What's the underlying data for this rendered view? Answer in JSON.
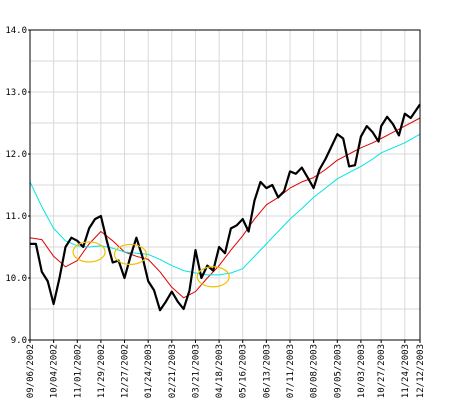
{
  "chart_data": {
    "type": "line",
    "title": "",
    "xlabel": "",
    "ylabel": "",
    "ylim": [
      9.0,
      14.0
    ],
    "yticks": [
      "9.0",
      "10.0",
      "11.0",
      "12.0",
      "13.0",
      "14.0"
    ],
    "xlim": [
      "2002-09-06",
      "2003-12-12"
    ],
    "xticks": [
      "09/06/2002",
      "10/04/2002",
      "11/01/2002",
      "11/29/2002",
      "12/27/2002",
      "01/24/2003",
      "02/21/2003",
      "03/21/2003",
      "04/18/2003",
      "05/16/2003",
      "06/13/2003",
      "07/11/2003",
      "08/08/2003",
      "09/05/2003",
      "10/03/2003",
      "10/27/2003",
      "11/24/2003",
      "12/12/2003"
    ],
    "grid": true,
    "legend": "none",
    "series": [
      {
        "color": "#000000",
        "style": "price",
        "points": [
          [
            "2002-09-06",
            10.55
          ],
          [
            "2002-09-13",
            10.55
          ],
          [
            "2002-09-20",
            10.1
          ],
          [
            "2002-09-27",
            9.95
          ],
          [
            "2002-10-04",
            9.58
          ],
          [
            "2002-10-11",
            10.0
          ],
          [
            "2002-10-18",
            10.5
          ],
          [
            "2002-10-25",
            10.65
          ],
          [
            "2002-11-01",
            10.6
          ],
          [
            "2002-11-08",
            10.5
          ],
          [
            "2002-11-15",
            10.8
          ],
          [
            "2002-11-22",
            10.95
          ],
          [
            "2002-11-29",
            11.0
          ],
          [
            "2002-12-06",
            10.6
          ],
          [
            "2002-12-13",
            10.25
          ],
          [
            "2002-12-20",
            10.28
          ],
          [
            "2002-12-27",
            10.0
          ],
          [
            "2003-01-03",
            10.35
          ],
          [
            "2003-01-10",
            10.65
          ],
          [
            "2003-01-17",
            10.35
          ],
          [
            "2003-01-24",
            9.95
          ],
          [
            "2003-01-31",
            9.8
          ],
          [
            "2003-02-07",
            9.48
          ],
          [
            "2003-02-14",
            9.62
          ],
          [
            "2003-02-21",
            9.78
          ],
          [
            "2003-02-28",
            9.62
          ],
          [
            "2003-03-07",
            9.5
          ],
          [
            "2003-03-14",
            9.8
          ],
          [
            "2003-03-21",
            10.45
          ],
          [
            "2003-03-28",
            10.0
          ],
          [
            "2003-04-04",
            10.2
          ],
          [
            "2003-04-11",
            10.12
          ],
          [
            "2003-04-18",
            10.5
          ],
          [
            "2003-04-25",
            10.4
          ],
          [
            "2003-05-02",
            10.8
          ],
          [
            "2003-05-09",
            10.85
          ],
          [
            "2003-05-16",
            10.95
          ],
          [
            "2003-05-23",
            10.75
          ],
          [
            "2003-05-30",
            11.25
          ],
          [
            "2003-06-06",
            11.55
          ],
          [
            "2003-06-13",
            11.45
          ],
          [
            "2003-06-20",
            11.5
          ],
          [
            "2003-06-27",
            11.3
          ],
          [
            "2003-07-04",
            11.4
          ],
          [
            "2003-07-11",
            11.72
          ],
          [
            "2003-07-18",
            11.68
          ],
          [
            "2003-07-25",
            11.78
          ],
          [
            "2003-08-01",
            11.62
          ],
          [
            "2003-08-08",
            11.45
          ],
          [
            "2003-08-15",
            11.75
          ],
          [
            "2003-08-22",
            11.92
          ],
          [
            "2003-08-29",
            12.12
          ],
          [
            "2003-09-05",
            12.32
          ],
          [
            "2003-09-12",
            12.25
          ],
          [
            "2003-09-19",
            11.8
          ],
          [
            "2003-09-26",
            11.82
          ],
          [
            "2003-10-03",
            12.28
          ],
          [
            "2003-10-10",
            12.45
          ],
          [
            "2003-10-17",
            12.35
          ],
          [
            "2003-10-24",
            12.2
          ],
          [
            "2003-10-27",
            12.45
          ],
          [
            "2003-11-03",
            12.6
          ],
          [
            "2003-11-10",
            12.48
          ],
          [
            "2003-11-17",
            12.3
          ],
          [
            "2003-11-24",
            12.65
          ],
          [
            "2003-12-01",
            12.58
          ],
          [
            "2003-12-08",
            12.72
          ],
          [
            "2003-12-12",
            12.8
          ]
        ]
      },
      {
        "color": "#e00000",
        "style": "short-moving-average",
        "points": [
          [
            "2002-09-06",
            10.65
          ],
          [
            "2002-09-20",
            10.62
          ],
          [
            "2002-10-04",
            10.35
          ],
          [
            "2002-10-18",
            10.18
          ],
          [
            "2002-11-01",
            10.28
          ],
          [
            "2002-11-15",
            10.55
          ],
          [
            "2002-11-29",
            10.75
          ],
          [
            "2002-12-13",
            10.6
          ],
          [
            "2002-12-27",
            10.42
          ],
          [
            "2003-01-10",
            10.35
          ],
          [
            "2003-01-24",
            10.3
          ],
          [
            "2003-02-07",
            10.1
          ],
          [
            "2003-02-21",
            9.85
          ],
          [
            "2003-03-07",
            9.68
          ],
          [
            "2003-03-21",
            9.78
          ],
          [
            "2003-04-04",
            10.0
          ],
          [
            "2003-04-18",
            10.2
          ],
          [
            "2003-05-02",
            10.45
          ],
          [
            "2003-05-16",
            10.68
          ],
          [
            "2003-05-30",
            10.95
          ],
          [
            "2003-06-13",
            11.18
          ],
          [
            "2003-06-27",
            11.3
          ],
          [
            "2003-07-11",
            11.45
          ],
          [
            "2003-07-25",
            11.55
          ],
          [
            "2003-08-08",
            11.62
          ],
          [
            "2003-08-22",
            11.75
          ],
          [
            "2003-09-05",
            11.9
          ],
          [
            "2003-09-19",
            12.0
          ],
          [
            "2003-10-03",
            12.1
          ],
          [
            "2003-10-17",
            12.18
          ],
          [
            "2003-10-27",
            12.25
          ],
          [
            "2003-11-10",
            12.35
          ],
          [
            "2003-11-24",
            12.45
          ],
          [
            "2003-12-12",
            12.58
          ]
        ]
      },
      {
        "color": "#00e5e5",
        "style": "long-moving-average",
        "points": [
          [
            "2002-09-06",
            11.55
          ],
          [
            "2002-09-20",
            11.15
          ],
          [
            "2002-10-04",
            10.8
          ],
          [
            "2002-10-18",
            10.6
          ],
          [
            "2002-11-01",
            10.52
          ],
          [
            "2002-11-15",
            10.5
          ],
          [
            "2002-11-29",
            10.52
          ],
          [
            "2002-12-13",
            10.48
          ],
          [
            "2002-12-27",
            10.42
          ],
          [
            "2003-01-10",
            10.4
          ],
          [
            "2003-01-24",
            10.38
          ],
          [
            "2003-02-07",
            10.3
          ],
          [
            "2003-02-21",
            10.2
          ],
          [
            "2003-03-07",
            10.12
          ],
          [
            "2003-03-21",
            10.08
          ],
          [
            "2003-04-04",
            10.05
          ],
          [
            "2003-04-18",
            10.05
          ],
          [
            "2003-05-02",
            10.08
          ],
          [
            "2003-05-16",
            10.15
          ],
          [
            "2003-05-30",
            10.35
          ],
          [
            "2003-06-13",
            10.55
          ],
          [
            "2003-06-27",
            10.75
          ],
          [
            "2003-07-11",
            10.95
          ],
          [
            "2003-07-25",
            11.12
          ],
          [
            "2003-08-08",
            11.3
          ],
          [
            "2003-08-22",
            11.45
          ],
          [
            "2003-09-05",
            11.6
          ],
          [
            "2003-09-19",
            11.7
          ],
          [
            "2003-10-03",
            11.8
          ],
          [
            "2003-10-17",
            11.92
          ],
          [
            "2003-10-27",
            12.02
          ],
          [
            "2003-11-10",
            12.1
          ],
          [
            "2003-11-24",
            12.18
          ],
          [
            "2003-12-12",
            12.32
          ]
        ]
      }
    ],
    "annotations": [
      {
        "shape": "ellipse",
        "color": "#f0c000",
        "x": "2002-11-15",
        "y": 10.42
      },
      {
        "shape": "ellipse",
        "color": "#f0c000",
        "x": "2003-01-03",
        "y": 10.38
      },
      {
        "shape": "ellipse",
        "color": "#f0c000",
        "x": "2003-04-11",
        "y": 10.02
      }
    ]
  }
}
